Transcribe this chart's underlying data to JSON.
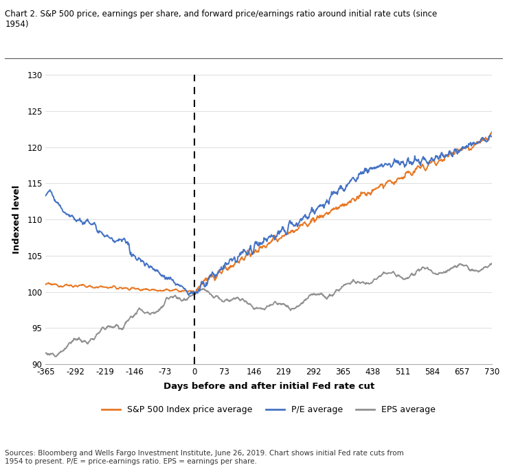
{
  "title": "Chart 2. S&P 500 price, earnings per share, and forward price/earnings ratio around initial rate cuts (since\n1954)",
  "xlabel": "Days before and after initial Fed rate cut",
  "ylabel": "Indexed level",
  "xlim": [
    -365,
    730
  ],
  "ylim": [
    90,
    130
  ],
  "xticks": [
    -365,
    -292,
    -219,
    -146,
    -73,
    0,
    73,
    146,
    219,
    292,
    365,
    438,
    511,
    584,
    657,
    730
  ],
  "yticks": [
    90,
    95,
    100,
    105,
    110,
    115,
    120,
    125,
    130
  ],
  "sp500_color": "#E87722",
  "pe_color": "#4472C4",
  "eps_color": "#909090",
  "legend_sp500": "S&P 500 Index price average",
  "legend_pe": "P/E average",
  "legend_eps": "EPS average",
  "sources_text": "Sources: Bloomberg and Wells Fargo Investment Institute, June 26, 2019. Chart shows initial Fed rate cuts from\n1954 to present. P/E = price-earnings ratio. EPS = earnings per share.",
  "background_color": "#ffffff",
  "dashed_line_x": 0
}
